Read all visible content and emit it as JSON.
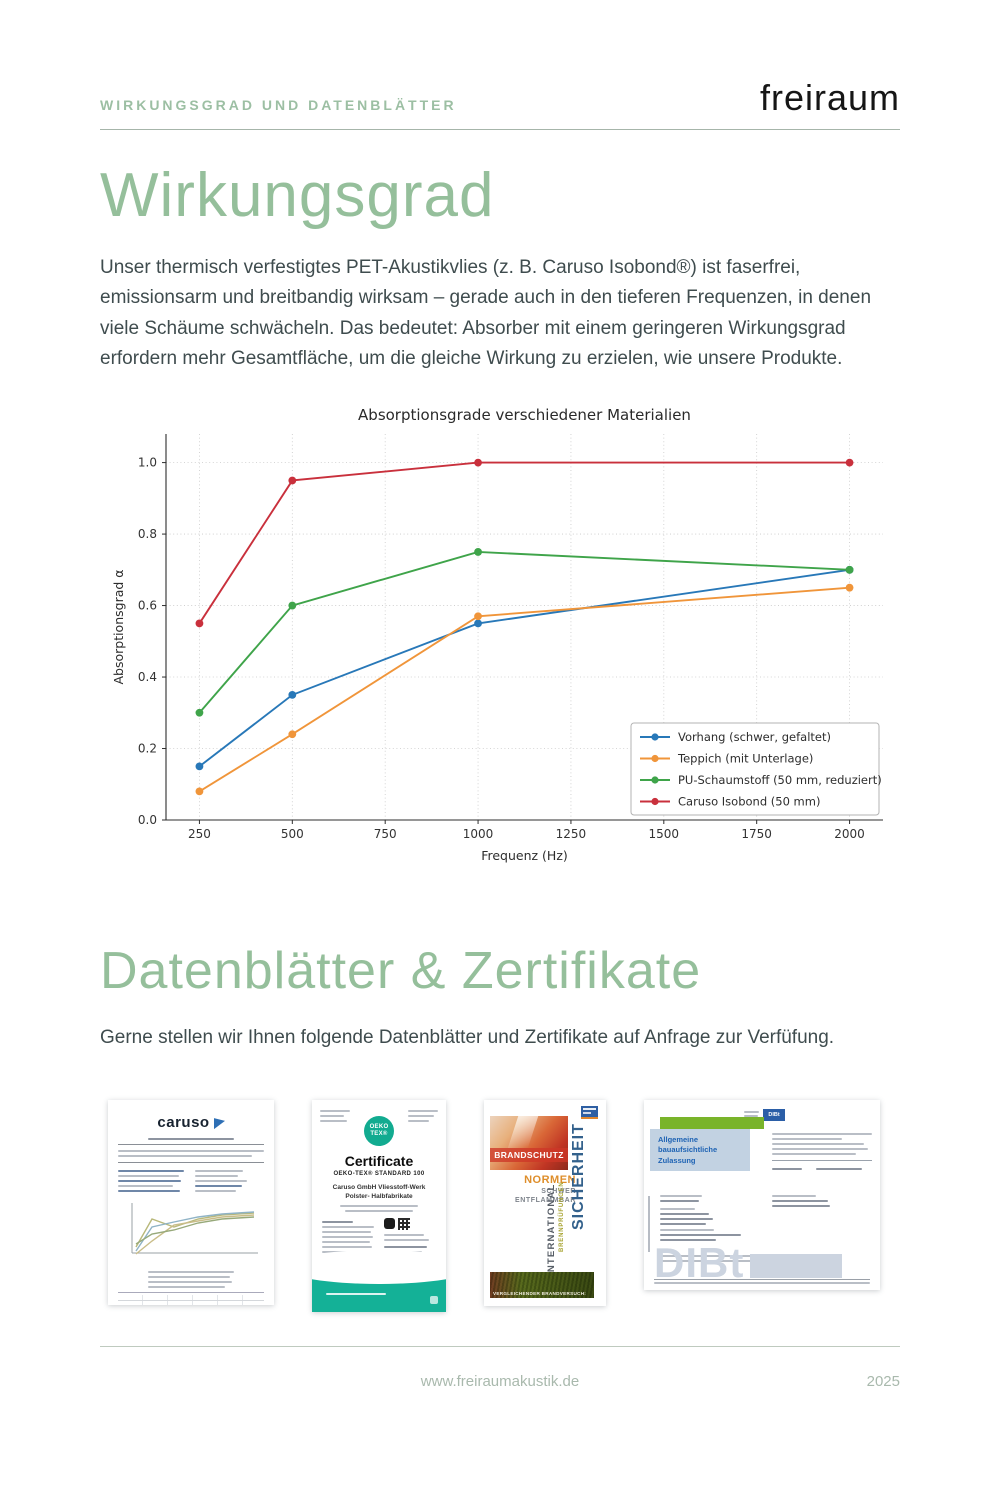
{
  "header": {
    "eyebrow": "WIRKUNGSGRAD UND DATENBLÄTTER",
    "brand": "freiraum"
  },
  "sections": {
    "wirkungsgrad": {
      "title": "Wirkungsgrad",
      "body": "Unser thermisch verfestigtes PET-Akustikvlies (z. B. Caruso Isobond®) ist faserfrei, emissionsarm und breitbandig wirksam – gerade auch in den tieferen Frequenzen, in denen viele Schäume schwächeln. Das bedeutet: Absorber mit einem geringeren Wirkungsgrad erfordern mehr Gesamtfläche, um die gleiche Wirkung zu erzielen, wie unsere Produkte."
    },
    "datenblaetter": {
      "title": "Datenblätter & Zertifikate",
      "body": "Gerne stellen wir Ihnen folgende Datenblätter und Zertifikate auf Anfrage zur Verfüfung."
    }
  },
  "chart_data": {
    "type": "line",
    "title": "Absorptionsgrade verschiedener Materialien",
    "xlabel": "Frequenz (Hz)",
    "ylabel": "Absorptionsgrad α",
    "x": [
      250,
      500,
      1000,
      2000
    ],
    "xticks": [
      250,
      500,
      750,
      1000,
      1250,
      1500,
      1750,
      2000
    ],
    "yticks": [
      0.0,
      0.2,
      0.4,
      0.6,
      0.8,
      1.0
    ],
    "xlim": [
      160,
      2090
    ],
    "ylim": [
      0,
      1.08
    ],
    "grid": true,
    "legend_position": "lower right",
    "series": [
      {
        "name": "Vorhang (schwer, gefaltet)",
        "color": "#2878b8",
        "values": [
          0.15,
          0.35,
          0.55,
          0.7
        ]
      },
      {
        "name": "Teppich (mit Unterlage)",
        "color": "#f0953a",
        "values": [
          0.08,
          0.24,
          0.57,
          0.65
        ]
      },
      {
        "name": "PU-Schaumstoff (50 mm, reduziert)",
        "color": "#3fa44a",
        "values": [
          0.3,
          0.6,
          0.75,
          0.7
        ]
      },
      {
        "name": "Caruso Isobond (50 mm)",
        "color": "#c9303c",
        "values": [
          0.55,
          0.95,
          1.0,
          1.0
        ]
      }
    ]
  },
  "certificates": {
    "caruso": {
      "brand": "caruso"
    },
    "oekotex": {
      "logo_line1": "OEKO",
      "logo_line2": "TEX®",
      "title": "Certificate",
      "subtitle": "OEKO-TEX® STANDARD 100",
      "company": "Caruso GmbH Vliesstoff-Werk Polster- Halbfabrikate"
    },
    "brandschutz": {
      "banner": "BRANDSCHUTZ",
      "word1": "NORMEN",
      "word2": "SCHWER",
      "word3": "ENTFLAMMBAR",
      "vertical1": "INTERNATIONAL",
      "vertical2": "BRENNPRÜFUNGEN",
      "vertical3": "SICHERHEIT",
      "caption": "VERGLEICHENDER BRANDVERSUCH:"
    },
    "dibt": {
      "logo": "DIBt",
      "box_label": "Allgemeine bauaufsichtliche Zulassung",
      "watermark": "DIBt"
    }
  },
  "footer": {
    "url": "www.freiraumakustik.de",
    "year": "2025"
  },
  "colors": {
    "accent_green": "#95bf9b",
    "body_text": "#3f4c4e",
    "oekotex_teal": "#14b197",
    "dibt_blue": "#2b5ea7",
    "dibt_green": "#79b42a"
  }
}
